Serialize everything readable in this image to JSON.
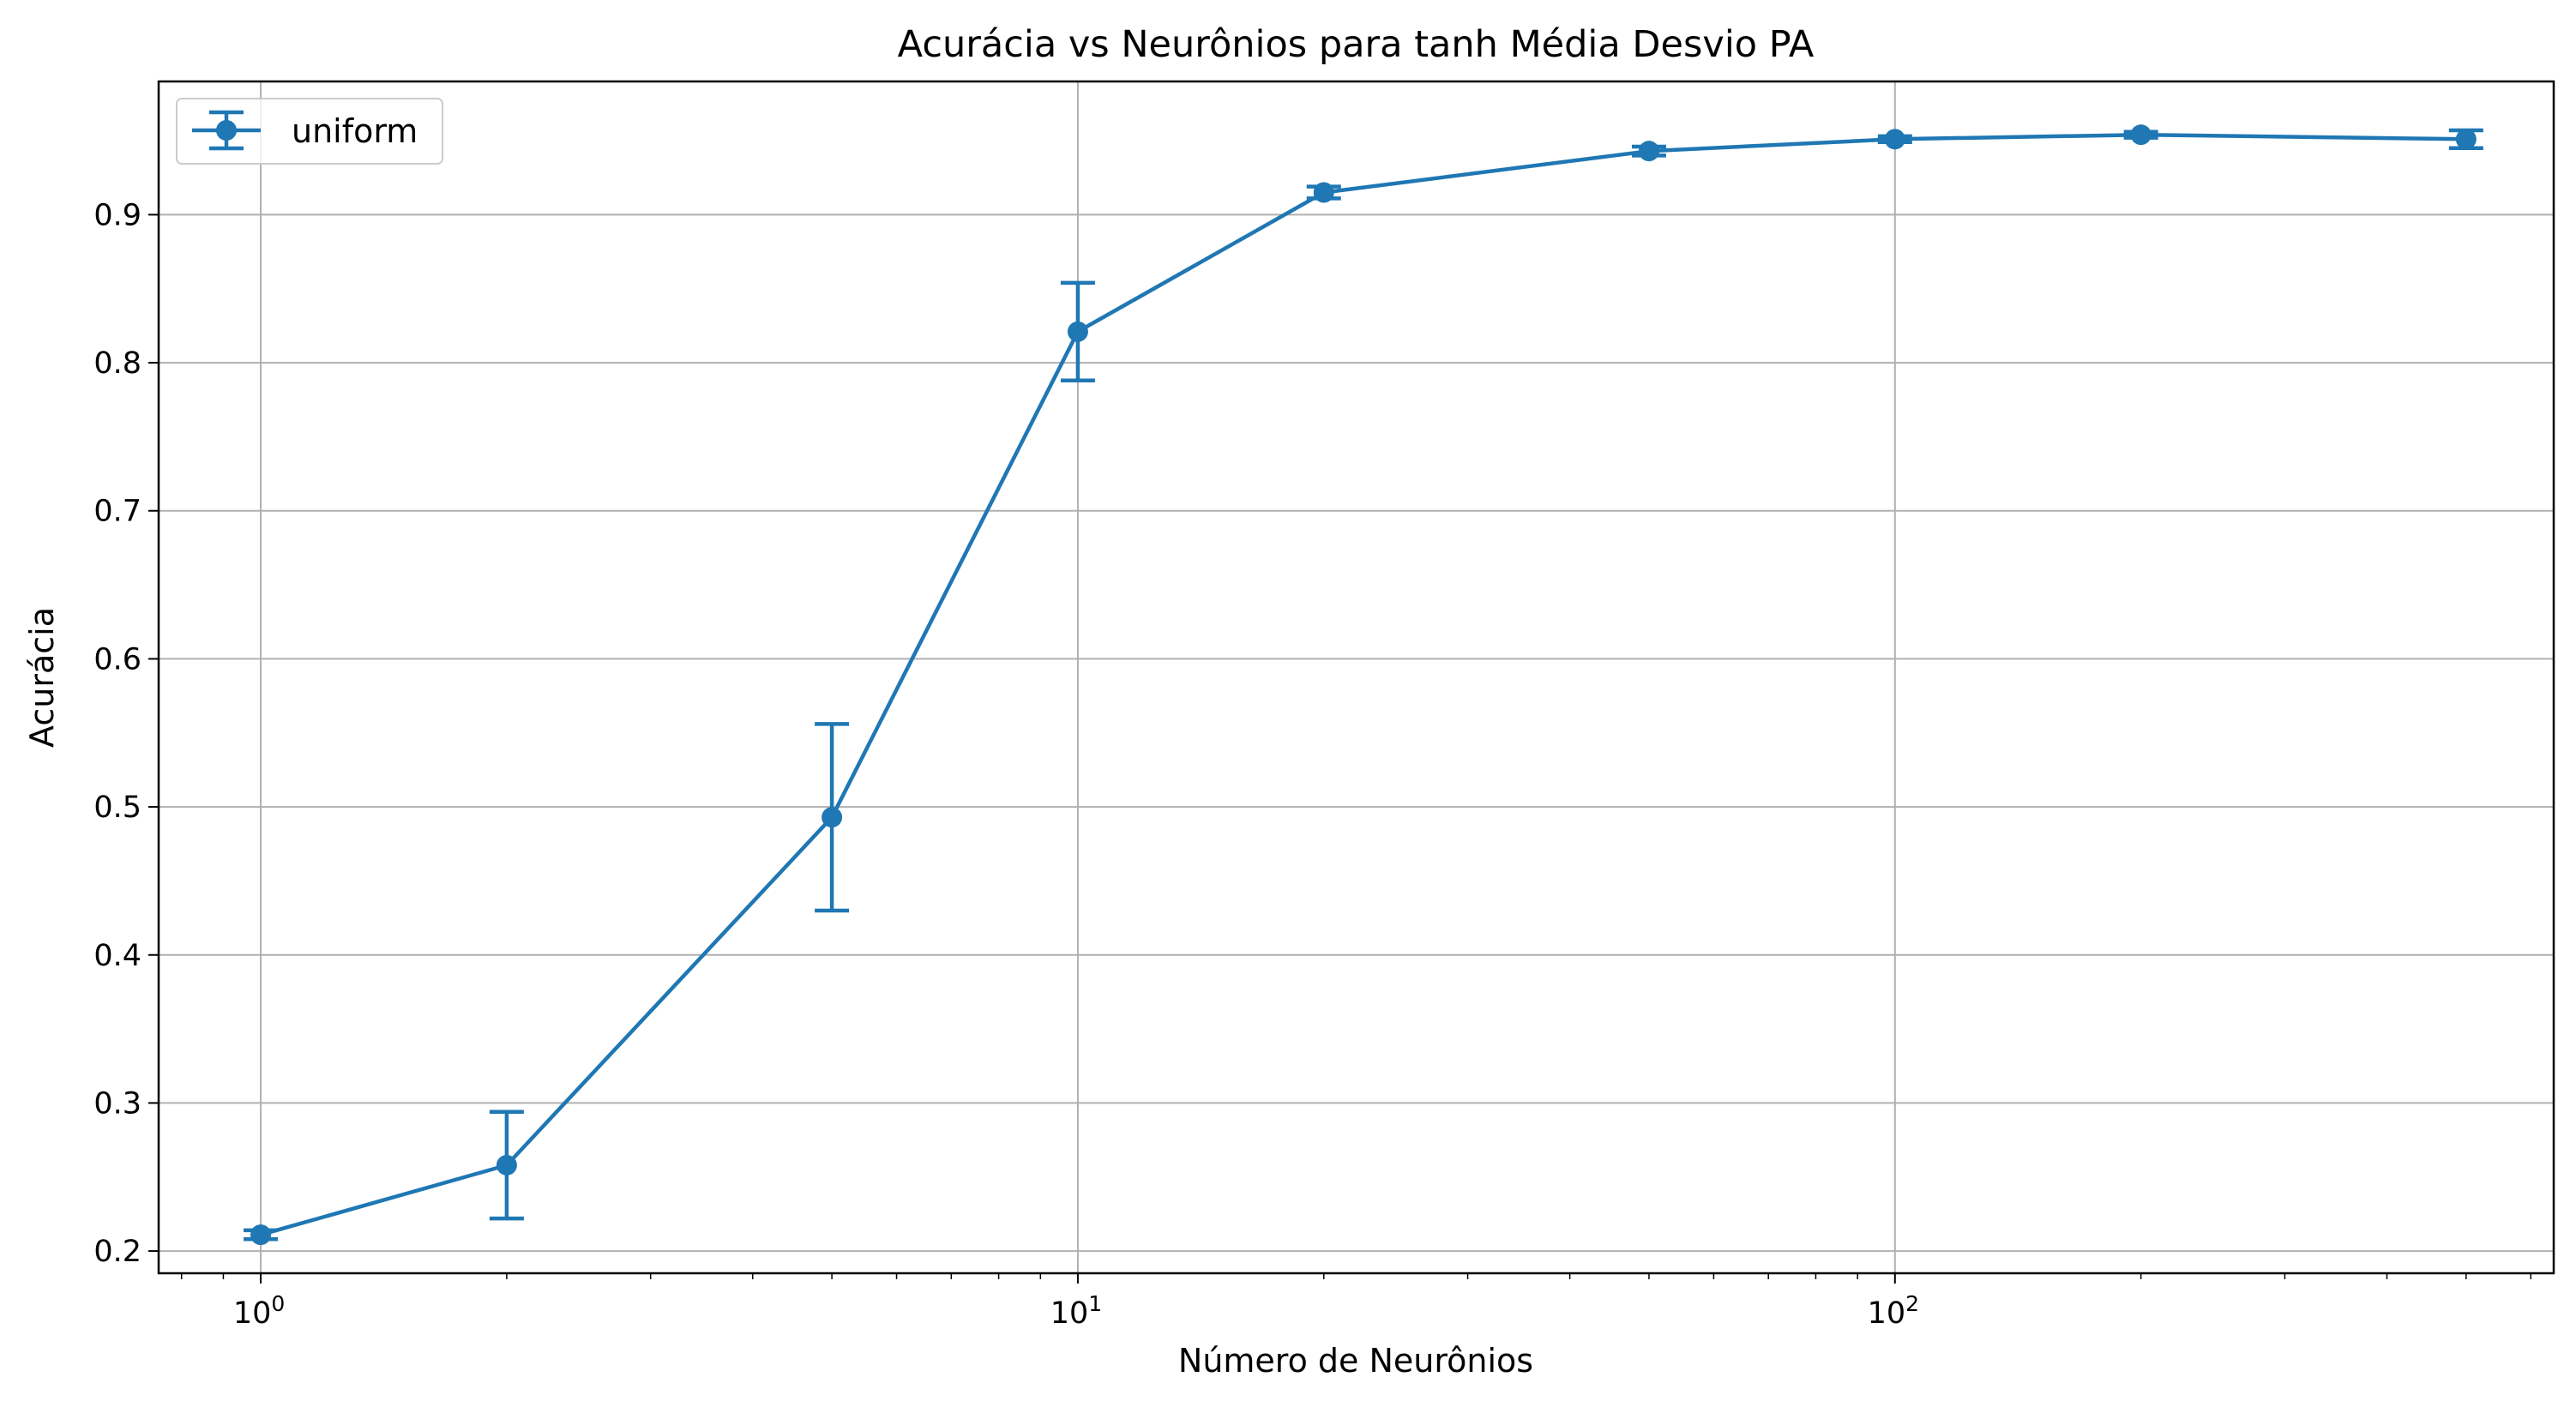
{
  "chart_data": {
    "type": "line",
    "title": "Acurácia vs Neurônios para tanh Média Desvio PA",
    "xlabel": "Número de Neurônios",
    "ylabel": "Acurácia",
    "xscale": "log",
    "xlim": [
      0.75,
      640
    ],
    "ylim": [
      0.185,
      0.99
    ],
    "grid": true,
    "legend_position": "top-left",
    "x_ticks": [
      {
        "value": 1,
        "base": "10",
        "exp": "0"
      },
      {
        "value": 10,
        "base": "10",
        "exp": "1"
      },
      {
        "value": 100,
        "base": "10",
        "exp": "2"
      }
    ],
    "y_ticks": [
      {
        "value": 0.2,
        "label": "0.2"
      },
      {
        "value": 0.3,
        "label": "0.3"
      },
      {
        "value": 0.4,
        "label": "0.4"
      },
      {
        "value": 0.5,
        "label": "0.5"
      },
      {
        "value": 0.6,
        "label": "0.6"
      },
      {
        "value": 0.7,
        "label": "0.7"
      },
      {
        "value": 0.8,
        "label": "0.8"
      },
      {
        "value": 0.9,
        "label": "0.9"
      }
    ],
    "series": [
      {
        "name": "uniform",
        "color": "#1f77b4",
        "x": [
          1,
          2,
          5,
          10,
          20,
          50,
          100,
          200,
          500
        ],
        "y": [
          0.211,
          0.258,
          0.493,
          0.821,
          0.915,
          0.943,
          0.951,
          0.954,
          0.951
        ],
        "yerr": [
          0.003,
          0.036,
          0.063,
          0.033,
          0.004,
          0.003,
          0.002,
          0.002,
          0.006
        ]
      }
    ]
  }
}
